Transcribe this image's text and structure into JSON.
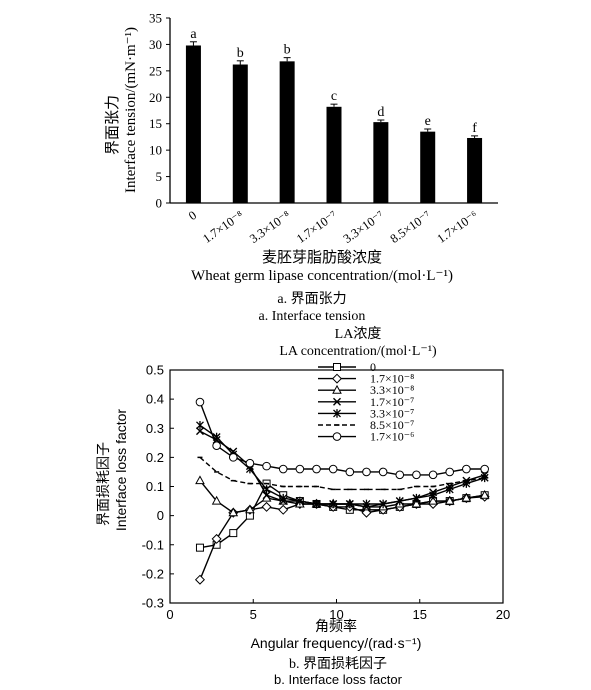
{
  "figure": {
    "panel_a": {
      "caption_cn": "a. 界面张力",
      "caption_en": "a. Interface tension"
    },
    "panel_b": {
      "caption_cn": "b. 界面损耗因子",
      "caption_en": "b. Interface loss factor"
    }
  },
  "chart_data": [
    {
      "type": "bar",
      "xlabel_cn": "麦胚芽脂肪酸浓度",
      "xlabel_en": "Wheat germ lipase concentration/(mol·L⁻¹)",
      "ylabel_cn": "界面张力",
      "ylabel_en": "Interface tension/(mN·m⁻¹)",
      "categories": [
        "0",
        "1.7×10⁻⁸",
        "3.3×10⁻⁸",
        "1.7×10⁻⁷",
        "3.3×10⁻⁷",
        "8.5×10⁻⁷",
        "1.7×10⁻⁶"
      ],
      "values": [
        29.8,
        26.2,
        26.8,
        18.2,
        15.3,
        13.5,
        12.3
      ],
      "errors": [
        0.7,
        0.7,
        0.7,
        0.5,
        0.4,
        0.5,
        0.4
      ],
      "significance_labels": [
        "a",
        "b",
        "b",
        "c",
        "d",
        "e",
        "f"
      ],
      "ylim": [
        0,
        35
      ],
      "yticks": [
        0,
        5,
        10,
        15,
        20,
        25,
        30,
        35
      ],
      "bar_color": "#000000"
    },
    {
      "type": "line",
      "xlabel_cn": "角频率",
      "xlabel_en": "Angular frequency/(rad·s⁻¹)",
      "ylabel_cn": "界面损耗因子",
      "ylabel_en": "Interface loss factor",
      "legend_title_cn": "LA浓度",
      "legend_title_en": "LA concentration/(mol·L⁻¹)",
      "legend_position": "top-center",
      "xlim": [
        0,
        20
      ],
      "xticks": [
        0,
        5,
        10,
        15,
        20
      ],
      "ylim": [
        -0.3,
        0.5
      ],
      "yticks": [
        -0.3,
        -0.2,
        -0.1,
        0,
        0.1,
        0.2,
        0.3,
        0.4,
        0.5
      ],
      "x": [
        1.8,
        2.8,
        3.8,
        4.8,
        5.8,
        6.8,
        7.8,
        8.8,
        9.8,
        10.8,
        11.8,
        12.8,
        13.8,
        14.8,
        15.8,
        16.8,
        17.8,
        18.9
      ],
      "series": [
        {
          "name": "0",
          "marker": "square",
          "dash": "solid",
          "values": [
            -0.11,
            -0.1,
            -0.06,
            0.0,
            0.11,
            0.07,
            0.05,
            0.04,
            0.03,
            0.02,
            0.02,
            0.02,
            0.03,
            0.04,
            0.05,
            0.05,
            0.06,
            0.07
          ]
        },
        {
          "name": "1.7×10⁻⁸",
          "marker": "diamond",
          "dash": "solid",
          "values": [
            -0.22,
            -0.08,
            0.01,
            0.02,
            0.03,
            0.02,
            0.04,
            0.04,
            0.03,
            0.03,
            0.01,
            0.02,
            0.03,
            0.04,
            0.04,
            0.05,
            0.06,
            0.065
          ]
        },
        {
          "name": "3.3×10⁻⁸",
          "marker": "triangle",
          "dash": "solid",
          "values": [
            0.12,
            0.05,
            0.01,
            0.02,
            0.06,
            0.05,
            0.04,
            0.04,
            0.04,
            0.04,
            0.03,
            0.03,
            0.04,
            0.04,
            0.05,
            0.05,
            0.06,
            0.07
          ]
        },
        {
          "name": "1.7×10⁻⁷",
          "marker": "x",
          "dash": "solid",
          "values": [
            0.29,
            0.26,
            0.22,
            0.17,
            0.07,
            0.05,
            0.05,
            0.04,
            0.04,
            0.04,
            0.03,
            0.04,
            0.05,
            0.06,
            0.08,
            0.1,
            0.12,
            0.14
          ]
        },
        {
          "name": "3.3×10⁻⁷",
          "marker": "star",
          "dash": "solid",
          "values": [
            0.31,
            0.27,
            0.21,
            0.16,
            0.09,
            0.06,
            0.05,
            0.04,
            0.04,
            0.04,
            0.04,
            0.04,
            0.05,
            0.06,
            0.07,
            0.09,
            0.11,
            0.13
          ]
        },
        {
          "name": "8.5×10⁻⁷",
          "marker": "dash",
          "dash": "dashed",
          "values": [
            0.2,
            0.15,
            0.12,
            0.11,
            0.11,
            0.1,
            0.1,
            0.1,
            0.09,
            0.09,
            0.09,
            0.09,
            0.09,
            0.1,
            0.1,
            0.11,
            0.12,
            0.13
          ]
        },
        {
          "name": "1.7×10⁻⁶",
          "marker": "circle",
          "dash": "solid",
          "values": [
            0.39,
            0.24,
            0.2,
            0.18,
            0.17,
            0.16,
            0.16,
            0.16,
            0.16,
            0.15,
            0.15,
            0.15,
            0.14,
            0.14,
            0.14,
            0.15,
            0.16,
            0.16
          ]
        }
      ]
    }
  ]
}
